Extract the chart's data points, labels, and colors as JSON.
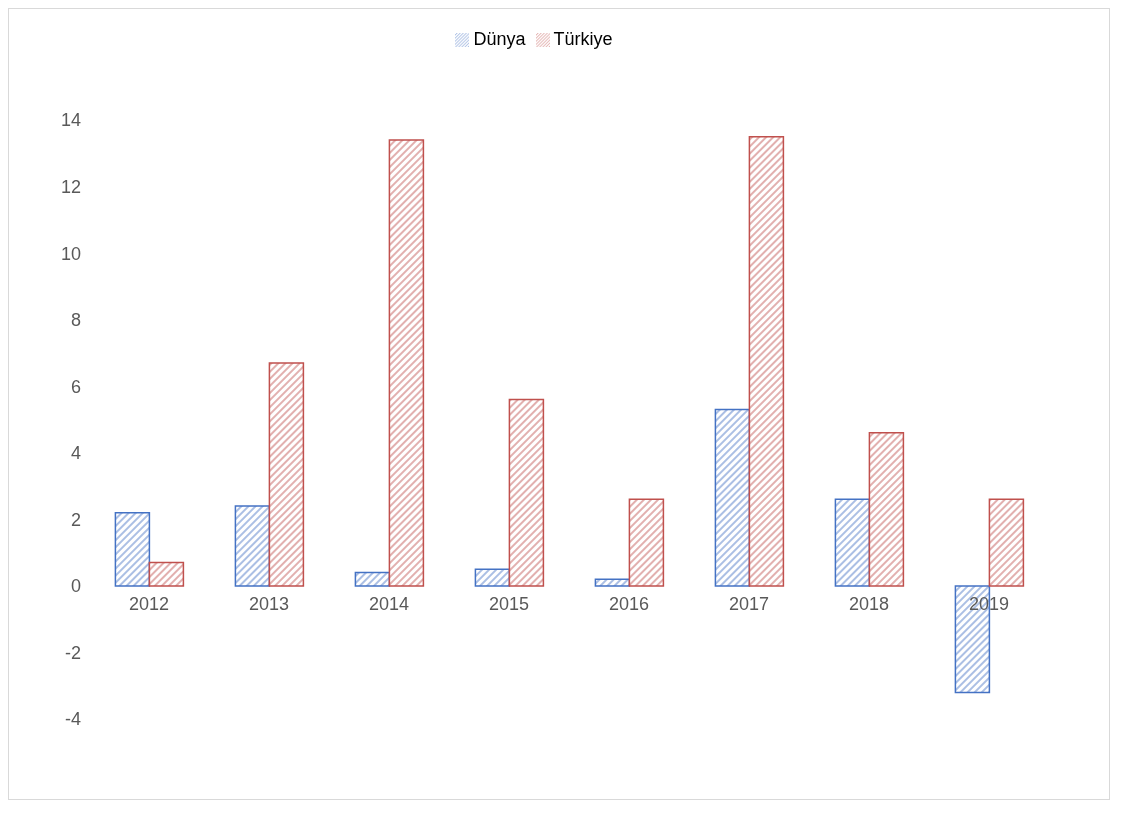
{
  "chart_data": {
    "type": "bar",
    "categories": [
      "2012",
      "2013",
      "2014",
      "2015",
      "2016",
      "2017",
      "2018",
      "2019"
    ],
    "series": [
      {
        "name": "Dünya",
        "color": "#4472c4",
        "values": [
          2.2,
          2.4,
          0.4,
          0.5,
          0.2,
          5.3,
          2.6,
          -3.2
        ]
      },
      {
        "name": "Türkiye",
        "color": "#c0504d",
        "values": [
          0.7,
          6.7,
          13.4,
          5.6,
          2.6,
          13.5,
          4.6,
          2.6
        ]
      }
    ],
    "ylim": [
      -4,
      14
    ],
    "yticks": [
      -4,
      -2,
      0,
      2,
      4,
      6,
      8,
      10,
      12,
      14
    ],
    "legend": "top"
  }
}
